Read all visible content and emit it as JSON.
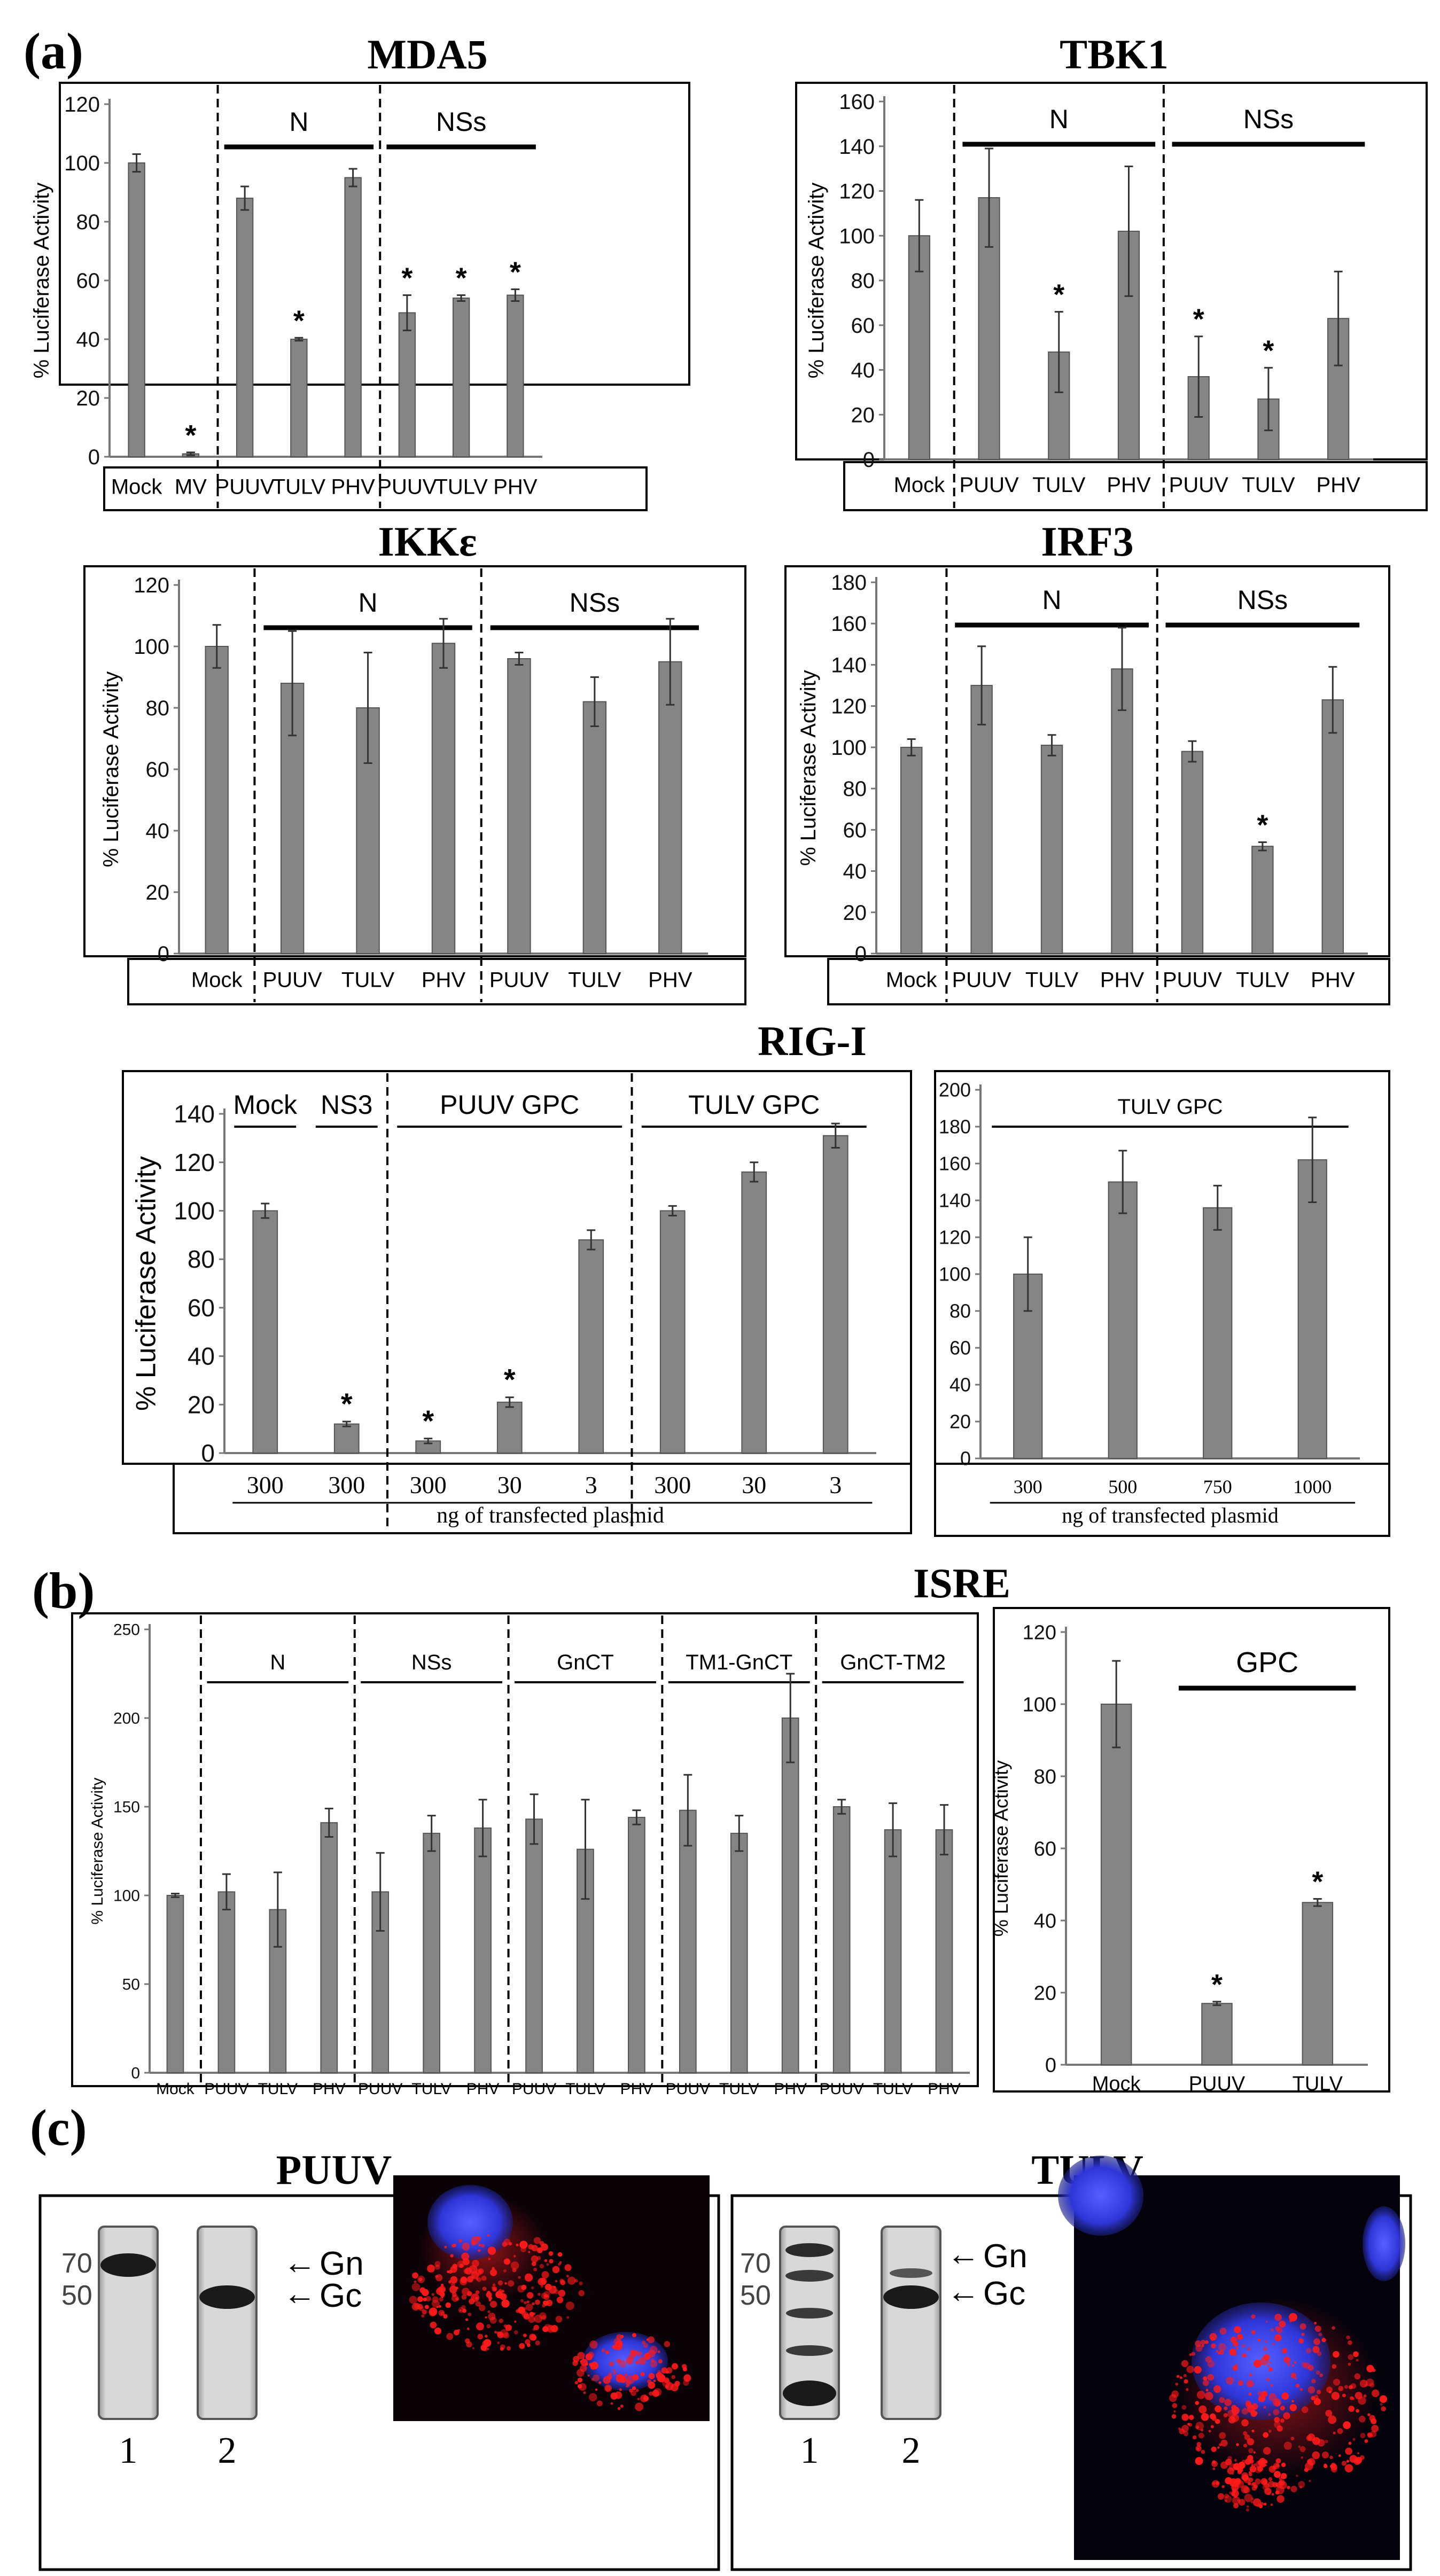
{
  "panels": {
    "a": "(a)",
    "b": "(b)",
    "c": "(c)"
  },
  "colors": {
    "bar": "#858585",
    "bar_stroke": "#555555",
    "axis": "#000000"
  },
  "chart_data": [
    {
      "id": "mda5",
      "type": "bar",
      "title": "MDA5",
      "ylabel": "% Luciferase Activity",
      "ylim": [
        0,
        120
      ],
      "yticks": [
        0,
        20,
        40,
        60,
        80,
        100,
        120
      ],
      "categories": [
        "Mock",
        "MV",
        "PUUV",
        "TULV",
        "PHV",
        "PUUV",
        "TULV",
        "PHV"
      ],
      "values": [
        100,
        1,
        88,
        40,
        95,
        49,
        54,
        55
      ],
      "errors": [
        3,
        0.5,
        4,
        0.5,
        3,
        6,
        1,
        2
      ],
      "significant": [
        false,
        true,
        false,
        true,
        false,
        true,
        true,
        true
      ],
      "groups": [
        {
          "label": "N",
          "start": 2,
          "end": 4
        },
        {
          "label": "NSs",
          "start": 5,
          "end": 7
        }
      ],
      "dividers": [
        1.5,
        4.5
      ],
      "sig_label": "*"
    },
    {
      "id": "tbk1",
      "type": "bar",
      "title": "TBK1",
      "ylabel": "% Luciferase Activity",
      "ylim": [
        0,
        160
      ],
      "yticks": [
        0,
        20,
        40,
        60,
        80,
        100,
        120,
        140,
        160
      ],
      "categories": [
        "Mock",
        "PUUV",
        "TULV",
        "PHV",
        "PUUV",
        "TULV",
        "PHV"
      ],
      "values": [
        100,
        117,
        48,
        102,
        37,
        27,
        63
      ],
      "errors": [
        16,
        22,
        18,
        29,
        18,
        14,
        21
      ],
      "significant": [
        false,
        false,
        true,
        false,
        true,
        true,
        false
      ],
      "groups": [
        {
          "label": "N",
          "start": 1,
          "end": 3
        },
        {
          "label": "NSs",
          "start": 4,
          "end": 6
        }
      ],
      "dividers": [
        0.5,
        3.5
      ],
      "sig_label": "*"
    },
    {
      "id": "ikke",
      "type": "bar",
      "title": "IKKε",
      "ylabel": "% Luciferase Activity",
      "ylim": [
        0,
        120
      ],
      "yticks": [
        0,
        20,
        40,
        60,
        80,
        100,
        120
      ],
      "categories": [
        "Mock",
        "PUUV",
        "TULV",
        "PHV",
        "PUUV",
        "TULV",
        "PHV"
      ],
      "values": [
        100,
        88,
        80,
        101,
        96,
        82,
        95
      ],
      "errors": [
        7,
        17,
        18,
        8,
        2,
        8,
        14
      ],
      "significant": [
        false,
        false,
        false,
        false,
        false,
        false,
        false
      ],
      "groups": [
        {
          "label": "N",
          "start": 1,
          "end": 3
        },
        {
          "label": "NSs",
          "start": 4,
          "end": 6
        }
      ],
      "dividers": [
        0.5,
        3.5
      ],
      "sig_label": "*"
    },
    {
      "id": "irf3",
      "type": "bar",
      "title": "IRF3",
      "ylabel": "% Luciferase Activity",
      "ylim": [
        0,
        180
      ],
      "yticks": [
        0,
        20,
        40,
        60,
        80,
        100,
        120,
        140,
        160,
        180
      ],
      "categories": [
        "Mock",
        "PUUV",
        "TULV",
        "PHV",
        "PUUV",
        "TULV",
        "PHV"
      ],
      "values": [
        100,
        130,
        101,
        138,
        98,
        52,
        123
      ],
      "errors": [
        4,
        19,
        5,
        20,
        5,
        2,
        16
      ],
      "significant": [
        false,
        false,
        false,
        false,
        false,
        true,
        false
      ],
      "groups": [
        {
          "label": "N",
          "start": 1,
          "end": 3
        },
        {
          "label": "NSs",
          "start": 4,
          "end": 6
        }
      ],
      "dividers": [
        0.5,
        3.5
      ],
      "sig_label": "*"
    },
    {
      "id": "rigi",
      "type": "bar",
      "title": "RIG-I",
      "ylabel": "% Luciferase Activity",
      "xlabel": "ng of transfected plasmid",
      "ylim": [
        0,
        140
      ],
      "yticks": [
        0,
        20,
        40,
        60,
        80,
        100,
        120,
        140
      ],
      "categories": [
        "300",
        "300",
        "300",
        "30",
        "3",
        "300",
        "30",
        "3"
      ],
      "values": [
        100,
        12,
        5,
        21,
        88,
        100,
        116,
        131
      ],
      "errors": [
        3,
        1,
        1,
        2,
        4,
        2,
        4,
        5
      ],
      "significant": [
        false,
        true,
        true,
        true,
        false,
        false,
        false,
        false
      ],
      "groups": [
        {
          "label": "Mock",
          "start": 0,
          "end": 0
        },
        {
          "label": "NS3",
          "start": 1,
          "end": 1
        },
        {
          "label": "PUUV GPC",
          "start": 2,
          "end": 4
        },
        {
          "label": "TULV GPC",
          "start": 5,
          "end": 7
        }
      ],
      "dividers": [
        1.5,
        4.5
      ],
      "sig_label": "*"
    },
    {
      "id": "rigi_tulv",
      "type": "bar",
      "title": "",
      "ylabel": "",
      "xlabel": "ng of transfected plasmid",
      "ylim": [
        0,
        200
      ],
      "yticks": [
        0,
        20,
        40,
        60,
        80,
        100,
        120,
        140,
        160,
        180,
        200
      ],
      "categories": [
        "300",
        "500",
        "750",
        "1000"
      ],
      "values": [
        100,
        150,
        136,
        162
      ],
      "errors": [
        20,
        17,
        12,
        23
      ],
      "significant": [
        false,
        false,
        false,
        false
      ],
      "groups": [
        {
          "label": "TULV GPC",
          "start": 0,
          "end": 3
        }
      ],
      "dividers": [],
      "sig_label": "*"
    },
    {
      "id": "isre",
      "type": "bar",
      "title": "ISRE",
      "ylabel": "% Luciferase Activity",
      "ylim": [
        0,
        250
      ],
      "yticks": [
        0,
        50,
        100,
        150,
        200,
        250
      ],
      "categories": [
        "Mock",
        "PUUV",
        "TULV",
        "PHV",
        "PUUV",
        "TULV",
        "PHV",
        "PUUV",
        "TULV",
        "PHV",
        "PUUV",
        "TULV",
        "PHV",
        "PUUV",
        "TULV",
        "PHV"
      ],
      "values": [
        100,
        102,
        92,
        141,
        102,
        135,
        138,
        143,
        126,
        144,
        148,
        135,
        200,
        150,
        137,
        137
      ],
      "errors": [
        1,
        10,
        21,
        8,
        22,
        10,
        16,
        14,
        28,
        4,
        20,
        10,
        25,
        4,
        15,
        14
      ],
      "significant": [
        false,
        false,
        false,
        false,
        false,
        false,
        false,
        false,
        false,
        false,
        false,
        false,
        false,
        false,
        false,
        false
      ],
      "groups": [
        {
          "label": "N",
          "start": 1,
          "end": 3
        },
        {
          "label": "NSs",
          "start": 4,
          "end": 6
        },
        {
          "label": "GnCT",
          "start": 7,
          "end": 9
        },
        {
          "label": "TM1-GnCT",
          "start": 10,
          "end": 12
        },
        {
          "label": "GnCT-TM2",
          "start": 13,
          "end": 15
        }
      ],
      "dividers": [
        0.5,
        3.5,
        6.5,
        9.5,
        12.5
      ],
      "sig_label": "*"
    },
    {
      "id": "isre_gpc",
      "type": "bar",
      "title": "",
      "ylabel": "% Luciferase Activity",
      "ylim": [
        0,
        120
      ],
      "yticks": [
        0,
        20,
        40,
        60,
        80,
        100,
        120
      ],
      "categories": [
        "Mock",
        "PUUV",
        "TULV"
      ],
      "values": [
        100,
        17,
        45
      ],
      "errors": [
        12,
        0.5,
        1
      ],
      "significant": [
        false,
        true,
        true
      ],
      "groups": [
        {
          "label": "GPC",
          "start": 1,
          "end": 2
        }
      ],
      "dividers": [],
      "sig_label": "*"
    }
  ],
  "blots": {
    "puuv": {
      "title": "PUUV",
      "marker_top": "70",
      "marker_bottom": "50",
      "gn": "Gn",
      "gc": "Gc",
      "lane1": "1",
      "lane2": "2"
    },
    "tulv": {
      "title": "TULV",
      "marker_top": "70",
      "marker_bottom": "50",
      "gn": "Gn",
      "gc": "Gc",
      "lane1": "1",
      "lane2": "2"
    }
  }
}
